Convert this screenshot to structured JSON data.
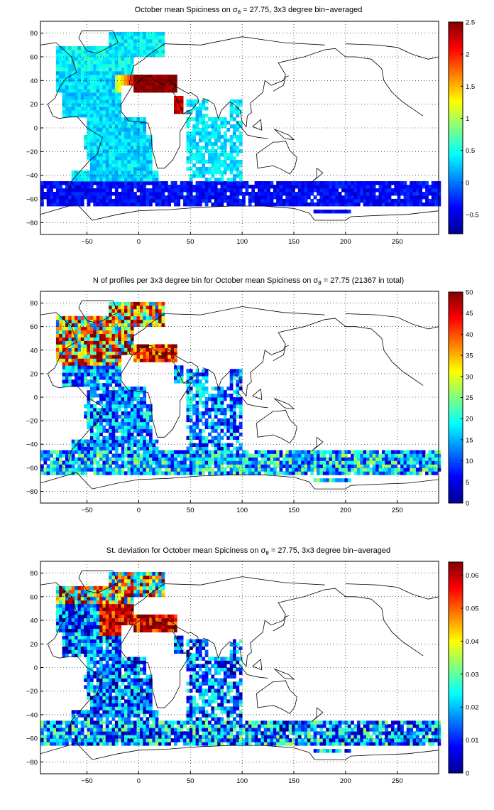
{
  "chart_data": [
    {
      "type": "heatmap",
      "title_prefix": "October mean Spiciness on ",
      "sigma_symbol": "σ",
      "sigma_subscript": "θ",
      "title_suffix": " = 27.75, 3x3 degree bin−averaged",
      "xlim": [
        -95,
        290
      ],
      "ylim": [
        -90,
        90
      ],
      "x_ticks": [
        -50,
        0,
        50,
        100,
        150,
        200,
        250
      ],
      "y_ticks": [
        80,
        60,
        40,
        20,
        0,
        -20,
        -40,
        -60,
        -80
      ],
      "colorbar": {
        "min": -0.8,
        "max": 2.5,
        "ticks": [
          "2.5",
          "2",
          "1.5",
          "1",
          "0.5",
          "0",
          "-0.5"
        ],
        "tick_values": [
          2.5,
          2,
          1.5,
          1,
          0.5,
          0,
          -0.5
        ]
      },
      "grid": true
    },
    {
      "type": "heatmap",
      "title_prefix": "N of profiles per 3x3 degree bin for October mean Spiciness on ",
      "sigma_symbol": "σ",
      "sigma_subscript": "θ",
      "title_suffix": " = 27.75 (21367 in total)",
      "xlim": [
        -95,
        290
      ],
      "ylim": [
        -90,
        90
      ],
      "x_ticks": [
        -50,
        0,
        50,
        100,
        150,
        200,
        250
      ],
      "y_ticks": [
        80,
        60,
        40,
        20,
        0,
        -20,
        -40,
        -60,
        -80
      ],
      "colorbar": {
        "min": 0,
        "max": 50,
        "ticks": [
          "50",
          "45",
          "40",
          "35",
          "30",
          "25",
          "20",
          "15",
          "10",
          "5",
          "0"
        ],
        "tick_values": [
          50,
          45,
          40,
          35,
          30,
          25,
          20,
          15,
          10,
          5,
          0
        ]
      },
      "grid": true
    },
    {
      "type": "heatmap",
      "title_prefix": "St. deviation for October mean Spiciness on ",
      "sigma_symbol": "σ",
      "sigma_subscript": "θ",
      "title_suffix": " = 27.75, 3x3 degree bin−averaged",
      "xlim": [
        -95,
        290
      ],
      "ylim": [
        -90,
        90
      ],
      "x_ticks": [
        -50,
        0,
        50,
        100,
        150,
        200,
        250
      ],
      "y_ticks": [
        80,
        60,
        40,
        20,
        0,
        -20,
        -40,
        -60,
        -80
      ],
      "colorbar": {
        "min": 0,
        "max": 0.064,
        "ticks": [
          "0.06",
          "0.05",
          "0.04",
          "0.03",
          "0.02",
          "0.01",
          "0"
        ],
        "tick_values": [
          0.06,
          0.05,
          0.04,
          0.03,
          0.02,
          0.01,
          0
        ]
      },
      "grid": true
    }
  ],
  "colors": {
    "axis": "#000000",
    "grid": "#000000",
    "coast": "#000000"
  }
}
